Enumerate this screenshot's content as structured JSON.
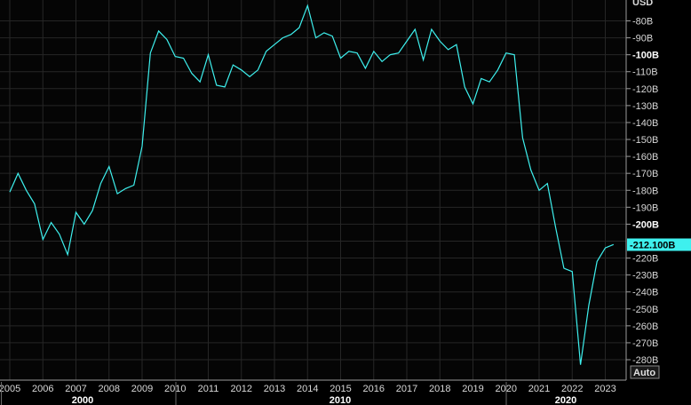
{
  "chart_data": {
    "type": "line",
    "unit_label": "USD",
    "auto_label": "Auto",
    "last_value_label": "-212.100B",
    "y_ticks": [
      {
        "value": -80,
        "label": "-80B",
        "major": false
      },
      {
        "value": -90,
        "label": "-90B",
        "major": false
      },
      {
        "value": -100,
        "label": "-100B",
        "major": true
      },
      {
        "value": -110,
        "label": "-110B",
        "major": false
      },
      {
        "value": -120,
        "label": "-120B",
        "major": false
      },
      {
        "value": -130,
        "label": "-130B",
        "major": false
      },
      {
        "value": -140,
        "label": "-140B",
        "major": false
      },
      {
        "value": -150,
        "label": "-150B",
        "major": false
      },
      {
        "value": -160,
        "label": "-160B",
        "major": false
      },
      {
        "value": -170,
        "label": "-170B",
        "major": false
      },
      {
        "value": -180,
        "label": "-180B",
        "major": false
      },
      {
        "value": -190,
        "label": "-190B",
        "major": false
      },
      {
        "value": -200,
        "label": "-200B",
        "major": true
      },
      {
        "value": -220,
        "label": "-220B",
        "major": false
      },
      {
        "value": -230,
        "label": "-230B",
        "major": false
      },
      {
        "value": -240,
        "label": "-240B",
        "major": false
      },
      {
        "value": -250,
        "label": "-250B",
        "major": false
      },
      {
        "value": -260,
        "label": "-260B",
        "major": false
      },
      {
        "value": -270,
        "label": "-270B",
        "major": false
      },
      {
        "value": -280,
        "label": "-280B",
        "major": false
      }
    ],
    "x_ticks": [
      "2005",
      "2006",
      "2007",
      "2008",
      "2009",
      "2010",
      "2011",
      "2012",
      "2013",
      "2014",
      "2015",
      "2016",
      "2017",
      "2018",
      "2019",
      "2020",
      "2021",
      "2022",
      "2023"
    ],
    "decades": [
      "2000",
      "2010",
      "2020"
    ],
    "x_range": [
      2005.0,
      2023.7
    ],
    "y_range": [
      -287,
      -75
    ],
    "last_value": -212.1,
    "series": [
      {
        "color": "#3ef0ee",
        "x": [
          2005.0,
          2005.25,
          2005.5,
          2005.75,
          2006.0,
          2006.25,
          2006.5,
          2006.75,
          2007.0,
          2007.25,
          2007.5,
          2007.75,
          2008.0,
          2008.25,
          2008.5,
          2008.75,
          2009.0,
          2009.25,
          2009.5,
          2009.75,
          2010.0,
          2010.25,
          2010.5,
          2010.75,
          2011.0,
          2011.25,
          2011.5,
          2011.75,
          2012.0,
          2012.25,
          2012.5,
          2012.75,
          2013.0,
          2013.25,
          2013.5,
          2013.75,
          2014.0,
          2014.25,
          2014.5,
          2014.75,
          2015.0,
          2015.25,
          2015.5,
          2015.75,
          2016.0,
          2016.25,
          2016.5,
          2016.75,
          2017.0,
          2017.25,
          2017.5,
          2017.75,
          2018.0,
          2018.25,
          2018.5,
          2018.75,
          2019.0,
          2019.25,
          2019.5,
          2019.75,
          2020.0,
          2020.25,
          2020.5,
          2020.75,
          2021.0,
          2021.25,
          2021.5,
          2021.75,
          2022.0,
          2022.25,
          2022.5,
          2022.75,
          2023.0,
          2023.25
        ],
        "y": [
          -181,
          -170,
          -180,
          -188,
          -209,
          -199,
          -206,
          -218,
          -193,
          -200,
          -192,
          -176,
          -166,
          -182,
          -179,
          -177,
          -154,
          -99,
          -86,
          -91,
          -101,
          -102,
          -111,
          -116,
          -100,
          -118,
          -119,
          -106,
          -109,
          -113,
          -109,
          -98,
          -94,
          -90,
          -88,
          -84,
          -71,
          -90,
          -87,
          -89,
          -102,
          -98,
          -99,
          -108,
          -98,
          -104,
          -100,
          -99,
          -92,
          -85,
          -103,
          -85,
          -92,
          -97,
          -94,
          -119,
          -129,
          -114,
          -116,
          -109,
          -99,
          -100,
          -149,
          -168,
          -180,
          -176,
          -202,
          -226,
          -228,
          -283,
          -248,
          -222,
          -214,
          -212
        ]
      }
    ]
  }
}
